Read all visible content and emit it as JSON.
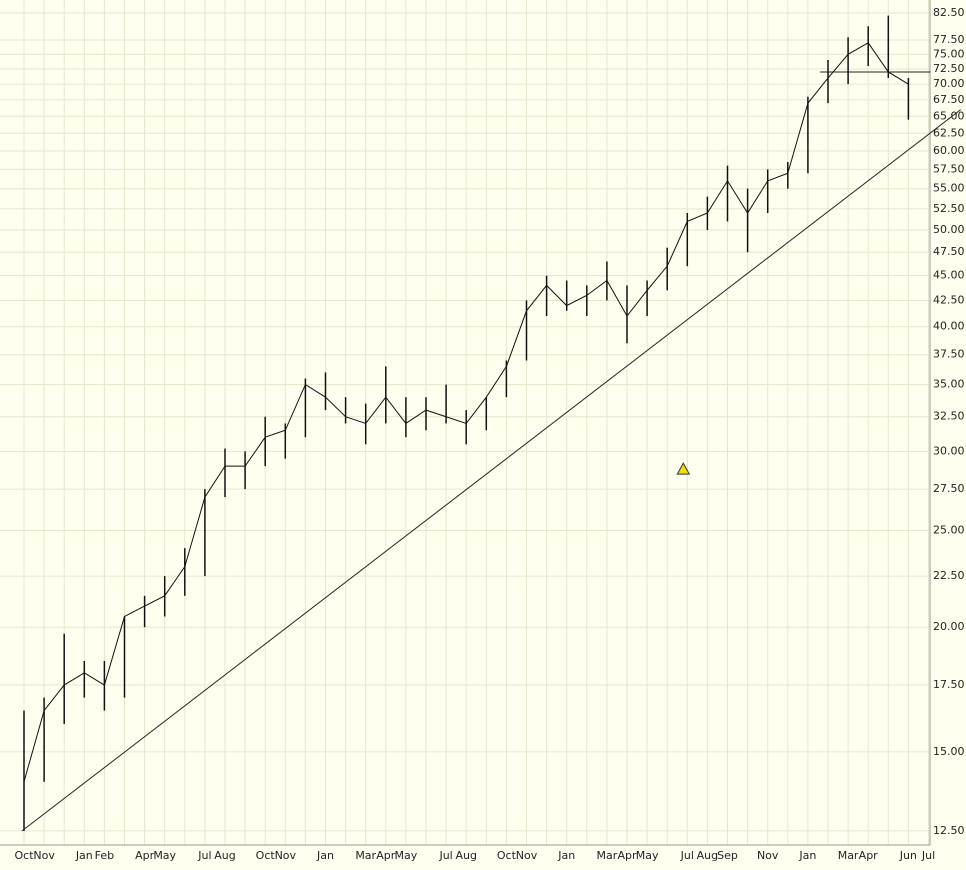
{
  "chart_data": {
    "type": "price",
    "categories": [
      "Oct",
      "Nov",
      null,
      "Jan",
      "Feb",
      null,
      "Apr",
      "May",
      null,
      "Jul",
      "Aug",
      null,
      "Oct",
      "Nov",
      null,
      "Jan",
      null,
      "Mar",
      "Apr",
      "May",
      null,
      "Jul",
      "Aug",
      null,
      "Oct",
      "Nov",
      null,
      "Jan",
      null,
      "Mar",
      "Apr",
      "May",
      null,
      "Jul",
      "Aug",
      "Sep",
      null,
      "Nov",
      null,
      "Jan",
      null,
      "Mar",
      "Apr",
      null,
      "Jun",
      "Jul"
    ],
    "high": [
      16.5,
      17,
      19.7,
      18.5,
      18.5,
      20.5,
      21.5,
      22.5,
      24,
      27.5,
      30.2,
      30,
      32.5,
      32,
      35.5,
      36,
      34,
      33.5,
      36.5,
      34,
      34,
      35,
      33,
      34,
      37,
      42.5,
      45,
      44.5,
      44,
      46.5,
      44,
      44.5,
      48,
      52,
      54,
      58,
      55,
      57.5,
      58.5,
      68,
      74,
      78,
      80,
      82,
      71,
      null
    ],
    "low": [
      12.5,
      14,
      16,
      17,
      16.5,
      17,
      20,
      20.5,
      21.5,
      22.5,
      27,
      27.5,
      29,
      29.5,
      31,
      33,
      32,
      30.5,
      32,
      31,
      31.5,
      32,
      30.5,
      31.5,
      34,
      37,
      41,
      41.5,
      41,
      42.5,
      38.5,
      41,
      43.5,
      46,
      50,
      51,
      47.5,
      52,
      55,
      57,
      67,
      70,
      73,
      71,
      64.5,
      null
    ],
    "close": [
      14,
      16.5,
      17.5,
      18,
      17.5,
      20.5,
      21,
      21.5,
      23,
      27,
      29,
      29,
      31,
      31.5,
      35,
      34,
      32.5,
      32,
      34,
      32,
      33,
      32.5,
      32,
      34,
      36.5,
      41.5,
      44,
      42,
      43,
      44.5,
      41,
      43.5,
      46,
      51,
      52,
      56,
      52,
      56,
      57,
      67,
      71,
      75,
      77,
      72,
      70,
      null
    ],
    "color": "#111111",
    "ylim": [
      12.1,
      85
    ],
    "log_scale": true,
    "grid": true,
    "yticks": [
      {
        "value": 12.5,
        "label": "12.50"
      },
      {
        "value": 15,
        "label": "15.00"
      },
      {
        "value": 17.5,
        "label": "17.50"
      },
      {
        "value": 20,
        "label": "20.00"
      },
      {
        "value": 22.5,
        "label": "22.50"
      },
      {
        "value": 25,
        "label": "25.00"
      },
      {
        "value": 27.5,
        "label": "27.50"
      },
      {
        "value": 30,
        "label": "30.00"
      },
      {
        "value": 32.5,
        "label": "32.50"
      },
      {
        "value": 35,
        "label": "35.00"
      },
      {
        "value": 37.5,
        "label": "37.50"
      },
      {
        "value": 40,
        "label": "40.00"
      },
      {
        "value": 42.5,
        "label": "42.50"
      },
      {
        "value": 45,
        "label": "45.00"
      },
      {
        "value": 47.5,
        "label": "47.50"
      },
      {
        "value": 50,
        "label": "50.00"
      },
      {
        "value": 52.5,
        "label": "52.50"
      },
      {
        "value": 55,
        "label": "55.00"
      },
      {
        "value": 57.5,
        "label": "57.50"
      },
      {
        "value": 60,
        "label": "60.00"
      },
      {
        "value": 62.5,
        "label": "62.50"
      },
      {
        "value": 65,
        "label": "65.00"
      },
      {
        "value": 67.5,
        "label": "67.50"
      },
      {
        "value": 70,
        "label": "70.00"
      },
      {
        "value": 72.5,
        "label": "72.50"
      },
      {
        "value": 75,
        "label": "75.00"
      },
      {
        "value": 77.5,
        "label": "77.50"
      },
      {
        "value": 82.5,
        "label": "82.50"
      }
    ],
    "lines": [
      {
        "x": [
          -0.1,
          46.6
        ],
        "y": [
          12.5,
          66
        ]
      },
      {
        "x": [
          39.6,
          45.1
        ],
        "y": [
          72,
          72
        ]
      }
    ],
    "marker": {
      "x": 32.8,
      "y": 28.8,
      "color": "#f0e000"
    }
  }
}
